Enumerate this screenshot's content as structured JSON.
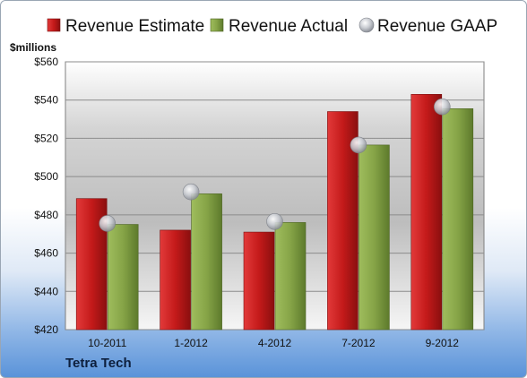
{
  "chart_data": {
    "type": "bar",
    "unit_label": "$millions",
    "categories": [
      "10-2011",
      "1-2012",
      "4-2012",
      "7-2012",
      "9-2012"
    ],
    "series": [
      {
        "name": "Revenue Estimate",
        "kind": "bar",
        "color": "#cc1f1f",
        "values": [
          488.5,
          472,
          471,
          534,
          543
        ]
      },
      {
        "name": "Revenue Actual",
        "kind": "bar",
        "color": "#8aa84a",
        "values": [
          475,
          491,
          476,
          516.5,
          535.5
        ]
      },
      {
        "name": "Revenue GAAP",
        "kind": "marker",
        "color": "#b8bcc4",
        "values": [
          475.5,
          492,
          476.5,
          516.5,
          536.5
        ]
      }
    ],
    "ylim": [
      420,
      560
    ],
    "yticks": [
      "$420",
      "$440",
      "$460",
      "$480",
      "$500",
      "$520",
      "$540",
      "$560"
    ],
    "grid": true,
    "legend": "top"
  },
  "company": "Tetra Tech"
}
